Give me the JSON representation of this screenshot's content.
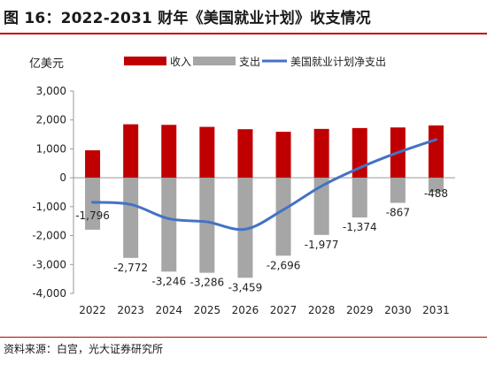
{
  "title": "图 16：2022-2031 财年《美国就业计划》收支情况",
  "source": "资料来源：白宫，光大证券研究所",
  "chart_data": {
    "type": "bar",
    "unit_label": "亿美元",
    "categories": [
      "2022",
      "2023",
      "2024",
      "2025",
      "2026",
      "2027",
      "2028",
      "2029",
      "2030",
      "2031"
    ],
    "ylim": [
      -4000,
      3000
    ],
    "yticks": [
      3000,
      2000,
      1000,
      0,
      -1000,
      -2000,
      -3000,
      -4000
    ],
    "ytick_labels": [
      "3,000",
      "2,000",
      "1,000",
      "0",
      "-1,000",
      "-2,000",
      "-3,000",
      "-4,000"
    ],
    "grid": false,
    "legend_position": "top",
    "series": [
      {
        "name": "收入",
        "kind": "bar",
        "color": "#c00000",
        "values": [
          950,
          1850,
          1830,
          1760,
          1680,
          1590,
          1690,
          1720,
          1740,
          1810
        ]
      },
      {
        "name": "支出",
        "kind": "bar",
        "color": "#a6a6a6",
        "values": [
          -1796,
          -2772,
          -3246,
          -3286,
          -3459,
          -2696,
          -1977,
          -1374,
          -867,
          -488
        ],
        "data_labels": [
          "-1,796",
          "-2,772",
          "-3,246",
          "-3,286",
          "-3,459",
          "-2,696",
          "-1,977",
          "-1,374",
          "-867",
          "-488"
        ]
      },
      {
        "name": "美国就业计划净支出",
        "kind": "line",
        "color": "#4472c4",
        "values": [
          -846,
          -922,
          -1416,
          -1526,
          -1779,
          -1106,
          -287,
          346,
          873,
          1322
        ]
      }
    ]
  }
}
